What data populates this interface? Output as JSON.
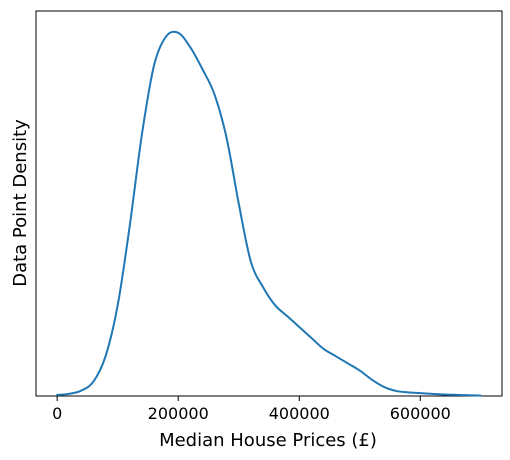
{
  "chart_data": {
    "type": "line",
    "title": "",
    "xlabel": "Median House Prices (£)",
    "ylabel": "Data Point Density",
    "xlim": [
      -35000,
      735000
    ],
    "ylim": [
      0,
      1.06
    ],
    "xticks": [
      0,
      200000,
      400000,
      600000
    ],
    "xtick_labels": [
      "0",
      "200000",
      "400000",
      "600000"
    ],
    "yticks": [],
    "grid": false,
    "legend": "none",
    "series": [
      {
        "color": "#1f77b4",
        "x": [
          0,
          20000,
          40000,
          60000,
          80000,
          100000,
          120000,
          140000,
          160000,
          180000,
          200000,
          220000,
          240000,
          260000,
          280000,
          300000,
          320000,
          340000,
          360000,
          380000,
          400000,
          420000,
          440000,
          460000,
          480000,
          500000,
          520000,
          540000,
          560000,
          580000,
          600000,
          620000,
          640000,
          660000,
          680000,
          700000
        ],
        "y": [
          0.003,
          0.006,
          0.015,
          0.04,
          0.11,
          0.25,
          0.47,
          0.72,
          0.91,
          0.99,
          1.0,
          0.96,
          0.9,
          0.83,
          0.71,
          0.53,
          0.37,
          0.3,
          0.25,
          0.22,
          0.19,
          0.16,
          0.13,
          0.11,
          0.09,
          0.07,
          0.045,
          0.025,
          0.014,
          0.01,
          0.008,
          0.006,
          0.004,
          0.003,
          0.002,
          0.001
        ]
      }
    ]
  }
}
